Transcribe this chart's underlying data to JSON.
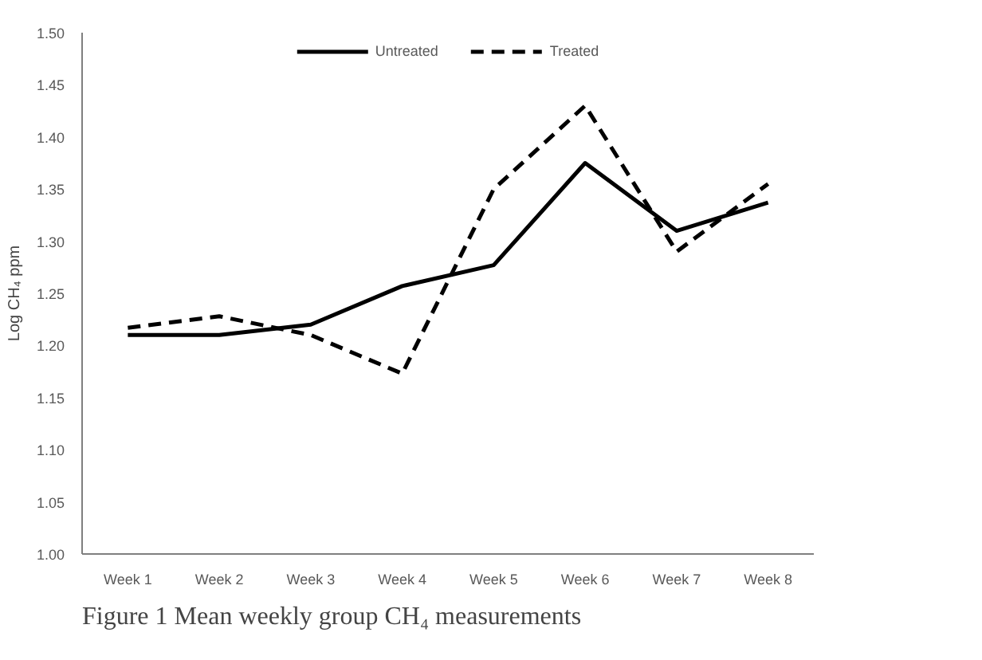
{
  "chart_data": {
    "type": "line",
    "ylabel": "Log CH₄ ppm",
    "categories": [
      "Week 1",
      "Week 2",
      "Week 3",
      "Week 4",
      "Week 5",
      "Week 6",
      "Week 7",
      "Week 8"
    ],
    "series": [
      {
        "name": "Untreated",
        "color": "#000000",
        "line_style": "solid",
        "values": [
          1.21,
          1.21,
          1.22,
          1.257,
          1.277,
          1.375,
          1.31,
          1.337
        ]
      },
      {
        "name": "Treated",
        "color": "#000000",
        "line_style": "dashed",
        "values": [
          1.217,
          1.228,
          1.21,
          1.173,
          1.35,
          1.43,
          1.29,
          1.355
        ]
      }
    ],
    "ylim": [
      1.0,
      1.5
    ],
    "yticks": [
      {
        "value": 1.0,
        "label": "1.00"
      },
      {
        "value": 1.05,
        "label": "1.05"
      },
      {
        "value": 1.1,
        "label": "1.10"
      },
      {
        "value": 1.15,
        "label": "1.15"
      },
      {
        "value": 1.2,
        "label": "1.20"
      },
      {
        "value": 1.25,
        "label": "1.25"
      },
      {
        "value": 1.3,
        "label": "1.30"
      },
      {
        "value": 1.35,
        "label": "1.35"
      },
      {
        "value": 1.4,
        "label": "1.40"
      },
      {
        "value": 1.45,
        "label": "1.45"
      },
      {
        "value": 1.5,
        "label": "1.50"
      }
    ],
    "grid": false,
    "legend": "top",
    "marker": "none",
    "annotations": [
      "Figure 1 Mean weekly group CH₄ measurements"
    ]
  }
}
